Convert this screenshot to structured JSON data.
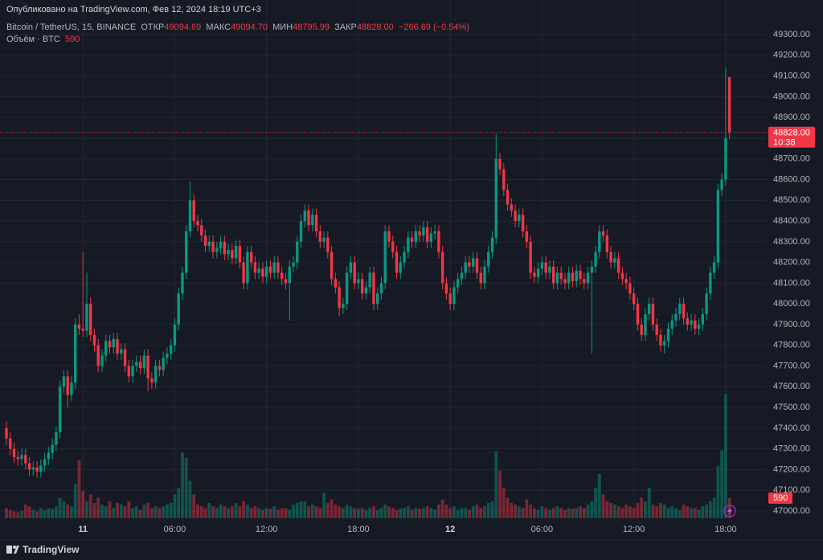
{
  "header": {
    "published": "Опубликовано на TradingView.com, Фев 12, 2024 18:19 UTC+3",
    "symbol": "Bitcoin / TetherUS, 15, BINANCE",
    "ohlc": [
      {
        "label": "ОТКР",
        "value": "49094.69"
      },
      {
        "label": "МАКС",
        "value": "49094.70"
      },
      {
        "label": "МИН",
        "value": "48795.99"
      },
      {
        "label": "ЗАКР",
        "value": "48828.00"
      }
    ],
    "change": "−266.69 (−0.54%)",
    "volume_label": "Объём · BTC"
  },
  "chart_data": {
    "type": "candlestick",
    "up_color": "#089981",
    "down_color": "#f23645",
    "categories": [
      null,
      null,
      null,
      null,
      null,
      null,
      null,
      null,
      null,
      null,
      null,
      null,
      null,
      null,
      null,
      null,
      null,
      null,
      null,
      null,
      "11",
      null,
      null,
      null,
      null,
      null,
      null,
      null,
      null,
      null,
      null,
      null,
      null,
      null,
      null,
      null,
      null,
      null,
      null,
      null,
      null,
      null,
      null,
      null,
      "06:00",
      null,
      null,
      null,
      null,
      null,
      null,
      null,
      null,
      null,
      null,
      null,
      null,
      null,
      null,
      null,
      null,
      null,
      null,
      null,
      null,
      null,
      null,
      null,
      "12:00",
      null,
      null,
      null,
      null,
      null,
      null,
      null,
      null,
      null,
      null,
      null,
      null,
      null,
      null,
      null,
      null,
      null,
      null,
      null,
      null,
      null,
      null,
      null,
      "18:00",
      null,
      null,
      null,
      null,
      null,
      null,
      null,
      null,
      null,
      null,
      null,
      null,
      null,
      null,
      null,
      null,
      null,
      null,
      null,
      null,
      null,
      null,
      null,
      "12",
      null,
      null,
      null,
      null,
      null,
      null,
      null,
      null,
      null,
      null,
      null,
      null,
      null,
      null,
      null,
      null,
      null,
      null,
      null,
      null,
      null,
      null,
      null,
      "06:00",
      null,
      null,
      null,
      null,
      null,
      null,
      null,
      null,
      null,
      null,
      null,
      null,
      null,
      null,
      null,
      null,
      null,
      null,
      null,
      null,
      null,
      null,
      null,
      "12:00",
      null,
      null,
      null,
      null,
      null,
      null,
      null,
      null,
      null,
      null,
      null,
      null,
      null,
      null,
      null,
      null,
      null,
      null,
      null,
      null,
      null,
      null,
      null,
      "18:00",
      null
    ],
    "open": [
      47400,
      47350,
      47300,
      47260,
      47250,
      47270,
      47230,
      47200,
      47210,
      47190,
      47220,
      47250,
      47280,
      47320,
      47380,
      47600,
      47650,
      47560,
      47620,
      47900,
      47880,
      47870,
      48000,
      47850,
      47800,
      47700,
      47750,
      47820,
      47790,
      47830,
      47760,
      47780,
      47700,
      47650,
      47700,
      47720,
      47690,
      47750,
      47640,
      47620,
      47700,
      47680,
      47740,
      47760,
      47800,
      47900,
      48050,
      48150,
      48350,
      48500,
      48400,
      48380,
      48330,
      48280,
      48300,
      48250,
      48270,
      48300,
      48240,
      48260,
      48220,
      48280,
      48200,
      48100,
      48250,
      48200,
      48150,
      48170,
      48130,
      48180,
      48150,
      48200,
      48150,
      48120,
      48100,
      48180,
      48200,
      48300,
      48400,
      48450,
      48380,
      48430,
      48350,
      48300,
      48320,
      48250,
      48120,
      48080,
      47980,
      48000,
      48150,
      48200,
      48100,
      48120,
      48050,
      48080,
      48150,
      48000,
      48050,
      48100,
      48350,
      48300,
      48250,
      48150,
      48200,
      48250,
      48320,
      48300,
      48350,
      48330,
      48370,
      48300,
      48340,
      48350,
      48250,
      48100,
      48050,
      48000,
      48080,
      48120,
      48150,
      48200,
      48180,
      48220,
      48150,
      48100,
      48180,
      48250,
      48320,
      48700,
      48650,
      48550,
      48480,
      48450,
      48400,
      48430,
      48350,
      48300,
      48150,
      48130,
      48170,
      48200,
      48150,
      48180,
      48100,
      48150,
      48120,
      48100,
      48150,
      48110,
      48160,
      48120,
      48100,
      48150,
      48180,
      48250,
      48350,
      48330,
      48250,
      48200,
      48220,
      48150,
      48120,
      48100,
      48050,
      48000,
      47900,
      47850,
      47950,
      48000,
      47900,
      47850,
      47800,
      47820,
      47880,
      47920,
      47950,
      48000,
      47930,
      47900,
      47920,
      47880,
      47900,
      47950,
      48050,
      48150,
      48200,
      48550,
      48600,
      49094.69
    ],
    "high": [
      47430,
      47380,
      47330,
      47290,
      47300,
      47300,
      47260,
      47240,
      47240,
      47250,
      47280,
      47310,
      47350,
      47410,
      47630,
      47680,
      47680,
      47650,
      47930,
      47950,
      48250,
      48150,
      48030,
      47880,
      47830,
      47780,
      47850,
      47850,
      47860,
      47860,
      47810,
      47810,
      47730,
      47730,
      47750,
      47750,
      47780,
      47780,
      47670,
      47730,
      47730,
      47770,
      47790,
      47830,
      47930,
      48080,
      48180,
      48380,
      48590,
      48530,
      48430,
      48410,
      48360,
      48330,
      48330,
      48300,
      48330,
      48330,
      48290,
      48290,
      48310,
      48310,
      48230,
      48280,
      48280,
      48230,
      48200,
      48200,
      48210,
      48210,
      48230,
      48230,
      48180,
      48150,
      48210,
      48230,
      48330,
      48430,
      48480,
      48480,
      48460,
      48460,
      48380,
      48350,
      48350,
      48280,
      48150,
      48110,
      48030,
      48180,
      48230,
      48230,
      48150,
      48150,
      48110,
      48180,
      48180,
      48080,
      48130,
      48380,
      48380,
      48330,
      48280,
      48230,
      48280,
      48350,
      48350,
      48380,
      48380,
      48400,
      48400,
      48370,
      48380,
      48380,
      48280,
      48130,
      48080,
      48110,
      48150,
      48180,
      48230,
      48230,
      48250,
      48250,
      48180,
      48210,
      48280,
      48350,
      48820,
      48730,
      48680,
      48580,
      48510,
      48480,
      48460,
      48460,
      48380,
      48330,
      48180,
      48200,
      48230,
      48230,
      48210,
      48210,
      48180,
      48180,
      48150,
      48180,
      48180,
      48190,
      48190,
      48150,
      48180,
      48210,
      48280,
      48380,
      48380,
      48360,
      48280,
      48250,
      48250,
      48180,
      48150,
      48130,
      48080,
      48030,
      47930,
      47980,
      48030,
      48030,
      47930,
      47880,
      47850,
      47910,
      47950,
      47980,
      48030,
      48030,
      47960,
      47950,
      47950,
      47930,
      47980,
      48080,
      48180,
      48230,
      48580,
      48630,
      49140,
      49094.7
    ],
    "low": [
      47320,
      47270,
      47230,
      47220,
      47220,
      47200,
      47170,
      47170,
      47160,
      47160,
      47190,
      47220,
      47250,
      47290,
      47350,
      47570,
      47500,
      47530,
      47590,
      47850,
      47840,
      47840,
      47820,
      47770,
      47670,
      47670,
      47720,
      47760,
      47760,
      47730,
      47730,
      47670,
      47620,
      47620,
      47670,
      47660,
      47660,
      47580,
      47590,
      47590,
      47650,
      47650,
      47710,
      47730,
      47770,
      47870,
      48020,
      48120,
      48320,
      48370,
      48350,
      48300,
      48250,
      48250,
      48220,
      48220,
      48240,
      48210,
      48210,
      48190,
      48190,
      48170,
      48070,
      48070,
      48170,
      48120,
      48120,
      48100,
      48100,
      48120,
      48120,
      48120,
      48090,
      48070,
      47920,
      48150,
      48170,
      48270,
      48370,
      48350,
      48350,
      48320,
      48270,
      48270,
      48220,
      48090,
      48050,
      47940,
      47950,
      47970,
      48120,
      48070,
      48070,
      48020,
      48020,
      48050,
      47970,
      47970,
      48020,
      48070,
      48270,
      48220,
      48120,
      48120,
      48170,
      48220,
      48270,
      48270,
      48300,
      48300,
      48270,
      48270,
      48310,
      48220,
      48070,
      48020,
      47970,
      47970,
      48050,
      48090,
      48120,
      48150,
      48150,
      48120,
      48070,
      48070,
      48150,
      48220,
      48290,
      48620,
      48520,
      48450,
      48420,
      48370,
      48370,
      48320,
      48270,
      48120,
      48100,
      48100,
      48140,
      48120,
      48120,
      48070,
      48070,
      48090,
      48070,
      48070,
      48080,
      48080,
      48090,
      48070,
      48070,
      47760,
      48150,
      48220,
      48300,
      48220,
      48170,
      48170,
      48120,
      48090,
      48070,
      48020,
      47970,
      47870,
      47820,
      47820,
      47920,
      47870,
      47820,
      47770,
      47760,
      47790,
      47850,
      47890,
      47920,
      47900,
      47870,
      47870,
      47850,
      47850,
      47870,
      47920,
      48020,
      48120,
      48170,
      48520,
      48570,
      48795.99
    ],
    "close": [
      47350,
      47300,
      47260,
      47250,
      47270,
      47230,
      47200,
      47210,
      47190,
      47220,
      47250,
      47280,
      47320,
      47380,
      47600,
      47650,
      47560,
      47620,
      47900,
      47880,
      47870,
      48000,
      47850,
      47800,
      47700,
      47750,
      47820,
      47790,
      47830,
      47760,
      47780,
      47700,
      47650,
      47700,
      47720,
      47690,
      47750,
      47640,
      47620,
      47700,
      47680,
      47740,
      47760,
      47800,
      47900,
      48050,
      48150,
      48350,
      48500,
      48400,
      48380,
      48330,
      48280,
      48300,
      48250,
      48270,
      48300,
      48240,
      48260,
      48220,
      48280,
      48200,
      48100,
      48250,
      48200,
      48150,
      48170,
      48130,
      48180,
      48150,
      48200,
      48150,
      48120,
      48100,
      48180,
      48200,
      48300,
      48400,
      48450,
      48380,
      48430,
      48350,
      48300,
      48320,
      48250,
      48120,
      48080,
      47980,
      48000,
      48150,
      48200,
      48100,
      48120,
      48050,
      48080,
      48150,
      48000,
      48050,
      48100,
      48350,
      48300,
      48250,
      48150,
      48200,
      48250,
      48320,
      48300,
      48350,
      48330,
      48370,
      48300,
      48340,
      48350,
      48250,
      48100,
      48050,
      48000,
      48080,
      48120,
      48150,
      48200,
      48180,
      48220,
      48150,
      48100,
      48180,
      48250,
      48320,
      48700,
      48650,
      48550,
      48480,
      48450,
      48400,
      48430,
      48350,
      48300,
      48150,
      48130,
      48170,
      48200,
      48150,
      48180,
      48100,
      48150,
      48120,
      48100,
      48150,
      48110,
      48160,
      48120,
      48100,
      48150,
      48180,
      48250,
      48350,
      48330,
      48250,
      48200,
      48220,
      48150,
      48120,
      48100,
      48050,
      48000,
      47900,
      47850,
      47950,
      48000,
      47900,
      47850,
      47800,
      47820,
      47880,
      47920,
      47950,
      48000,
      47930,
      47900,
      47920,
      47880,
      47900,
      47950,
      48050,
      48150,
      48200,
      48550,
      48600,
      48800,
      48828
    ],
    "volume": [
      300,
      250,
      200,
      180,
      220,
      400,
      350,
      250,
      200,
      300,
      250,
      300,
      280,
      350,
      600,
      500,
      400,
      350,
      1000,
      1700,
      800,
      500,
      700,
      450,
      600,
      400,
      350,
      500,
      300,
      450,
      400,
      350,
      500,
      300,
      350,
      250,
      400,
      450,
      300,
      350,
      300,
      350,
      400,
      450,
      700,
      900,
      1930,
      1770,
      1100,
      700,
      400,
      350,
      300,
      450,
      350,
      300,
      400,
      350,
      300,
      350,
      450,
      350,
      500,
      400,
      300,
      350,
      300,
      250,
      300,
      280,
      350,
      250,
      300,
      300,
      250,
      400,
      450,
      500,
      500,
      350,
      400,
      350,
      300,
      750,
      450,
      550,
      400,
      350,
      300,
      400,
      350,
      300,
      280,
      300,
      250,
      300,
      350,
      250,
      300,
      400,
      350,
      300,
      250,
      280,
      300,
      350,
      250,
      300,
      280,
      300,
      350,
      300,
      250,
      400,
      550,
      400,
      300,
      350,
      250,
      300,
      300,
      250,
      350,
      400,
      300,
      350,
      450,
      500,
      1960,
      1400,
      900,
      600,
      450,
      400,
      350,
      300,
      550,
      400,
      300,
      250,
      350,
      300,
      250,
      300,
      350,
      300,
      250,
      300,
      280,
      300,
      350,
      300,
      400,
      500,
      900,
      1300,
      700,
      500,
      450,
      400,
      350,
      300,
      400,
      350,
      300,
      450,
      600,
      500,
      900,
      400,
      350,
      450,
      400,
      300,
      350,
      300,
      250,
      400,
      350,
      300,
      300,
      250,
      350,
      400,
      500,
      600,
      1530,
      2000,
      3650,
      590
    ],
    "ylim": [
      46965,
      49467
    ],
    "volume_ylim": [
      0,
      3800
    ],
    "yticks": [
      {
        "value": 47000,
        "label": "47000.00"
      },
      {
        "value": 47100,
        "label": "47100.00"
      },
      {
        "value": 47200,
        "label": "47200.00"
      },
      {
        "value": 47300,
        "label": "47300.00"
      },
      {
        "value": 47400,
        "label": "47400.00"
      },
      {
        "value": 47500,
        "label": "47500.00"
      },
      {
        "value": 47600,
        "label": "47600.00"
      },
      {
        "value": 47700,
        "label": "47700.00"
      },
      {
        "value": 47800,
        "label": "47800.00"
      },
      {
        "value": 47900,
        "label": "47900.00"
      },
      {
        "value": 48000,
        "label": "48000.00"
      },
      {
        "value": 48100,
        "label": "48100.00"
      },
      {
        "value": 48200,
        "label": "48200.00"
      },
      {
        "value": 48300,
        "label": "48300.00"
      },
      {
        "value": 48400,
        "label": "48400.00"
      },
      {
        "value": 48500,
        "label": "48500.00"
      },
      {
        "value": 48600,
        "label": "48600.00"
      },
      {
        "value": 48700,
        "label": "48700.00"
      },
      {
        "value": 48800,
        "label": "48800.00"
      },
      {
        "value": 48900,
        "label": "48900.00"
      },
      {
        "value": 49000,
        "label": "49000.00"
      },
      {
        "value": 49100,
        "label": "49100.00"
      },
      {
        "value": 49200,
        "label": "49200.00"
      },
      {
        "value": 49300,
        "label": "49300.00"
      }
    ],
    "grid": true,
    "last_price_label": "48828.00",
    "countdown": "10:38"
  },
  "footer": {
    "brand": "TradingView"
  }
}
